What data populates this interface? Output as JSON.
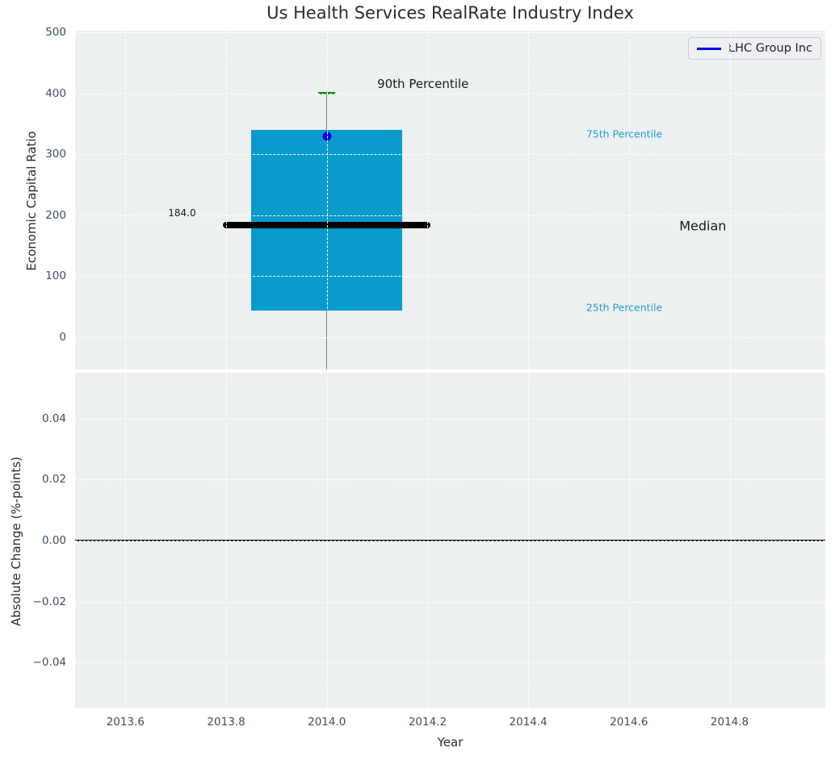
{
  "title": "Us Health Services RealRate Industry Index",
  "legend": {
    "label": "LHC Group Inc"
  },
  "colors": {
    "axes_background": "#edf0f1",
    "grid": "#ffffff",
    "box_fill": "#0a9bcd",
    "median_line": "#000000",
    "whisker_line": "#757575",
    "p90_cap": "#0b8e0b",
    "company_dot": "#0000ee",
    "legend_line": "#0000ee",
    "tick_label": "#3d4e63",
    "annotation_cyan": "#1f9fd0",
    "annotation_black": "#1a1a1a",
    "zero_line": "#000000"
  },
  "chart_data": [
    {
      "type": "box",
      "title": "Us Health Services RealRate Industry Index",
      "ylabel": "Economic Capital Ratio",
      "grid": true,
      "legend_position": "upper right",
      "xlim": [
        2013.5,
        2014.99
      ],
      "ylim": [
        -53,
        503
      ],
      "yticks": [
        0,
        100,
        200,
        300,
        400,
        500
      ],
      "ytick_labels": [
        "0",
        "100",
        "200",
        "300",
        "400",
        "500"
      ],
      "x_center": 2014.0,
      "box": {
        "p25": 44,
        "median": 184.0,
        "p75": 340,
        "p90": 400,
        "whisker_low_offscale": true,
        "box_halfwidth_years": 0.15,
        "median_halfwidth_years": 0.2065,
        "cap_halfwidth_years": 0.017
      },
      "company_point": {
        "name": "LHC Group Inc",
        "x": 2014.0,
        "y": 330
      },
      "annotations": [
        {
          "text": "90th Percentile",
          "x": 2014.1,
          "y": 415,
          "color": "#1a1a1a",
          "size": 15,
          "anchor": "left"
        },
        {
          "text": "75th Percentile",
          "x": 2014.515,
          "y": 333,
          "color": "#1f9fd0",
          "size": 12.5,
          "anchor": "left"
        },
        {
          "text": "Median",
          "x": 2014.7,
          "y": 183,
          "color": "#1a1a1a",
          "size": 16,
          "anchor": "left"
        },
        {
          "text": "25th Percentile",
          "x": 2014.515,
          "y": 49,
          "color": "#1f9fd0",
          "size": 12.5,
          "anchor": "left"
        },
        {
          "text": "184.0",
          "x": 2013.74,
          "y": 204,
          "color": "#1a1a1a",
          "size": 12,
          "anchor": "right"
        }
      ]
    },
    {
      "type": "line",
      "ylabel": "Absolute Change (%-points)",
      "xlabel": "Year",
      "grid": true,
      "xlim": [
        2013.5,
        2014.99
      ],
      "ylim": [
        -0.055,
        0.055
      ],
      "yticks": [
        0.04,
        0.02,
        0.0,
        -0.02,
        -0.04
      ],
      "ytick_labels": [
        "0.04",
        "0.02",
        "0.00",
        "−0.02",
        "−0.04"
      ],
      "xticks": [
        2013.6,
        2013.8,
        2014.0,
        2014.2,
        2014.4,
        2014.6,
        2014.8
      ],
      "xtick_labels": [
        "2013.6",
        "2013.8",
        "2014.0",
        "2014.2",
        "2014.4",
        "2014.6",
        "2014.8"
      ],
      "zero_line": 0.0,
      "series": []
    }
  ]
}
